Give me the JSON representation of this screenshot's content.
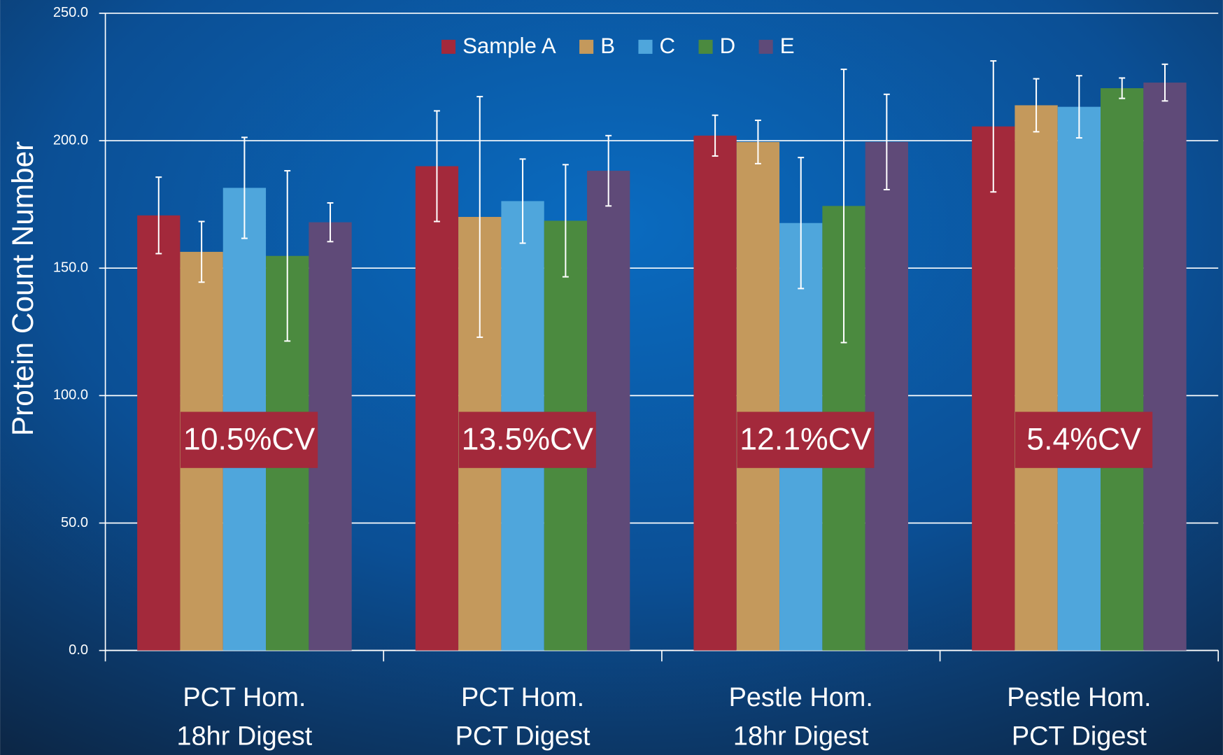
{
  "chart_data": {
    "type": "bar",
    "y_label": "Protein Count Number",
    "categories": [
      [
        "PCT Hom.",
        "18hr Digest"
      ],
      [
        "PCT Hom.",
        "PCT Digest"
      ],
      [
        "Pestle Hom.",
        "18hr Digest"
      ],
      [
        "Pestle Hom.",
        "PCT Digest"
      ]
    ],
    "series": [
      {
        "name": "Sample A",
        "color": "#a3293b",
        "values": [
          170.7,
          190.0,
          202.0,
          205.6
        ],
        "errors": [
          15.0,
          21.7,
          8.0,
          25.7
        ]
      },
      {
        "name": "B",
        "color": "#c4995c",
        "values": [
          156.4,
          170.1,
          199.5,
          213.9
        ],
        "errors": [
          11.9,
          47.2,
          8.5,
          10.4
        ]
      },
      {
        "name": "C",
        "color": "#4fa6dc",
        "values": [
          181.5,
          176.3,
          167.7,
          213.3
        ],
        "errors": [
          19.8,
          16.5,
          25.7,
          12.2
        ]
      },
      {
        "name": "D",
        "color": "#4b8a3f",
        "values": [
          154.8,
          168.6,
          174.4,
          220.6
        ],
        "errors": [
          33.4,
          22.0,
          53.6,
          4.0
        ]
      },
      {
        "name": "E",
        "color": "#5f4a78",
        "values": [
          168.0,
          188.2,
          199.5,
          222.8
        ],
        "errors": [
          7.6,
          13.8,
          18.7,
          7.2
        ]
      }
    ],
    "annotations": [
      "10.5%CV",
      "13.5%CV",
      "12.1%CV",
      "5.4%CV"
    ],
    "annotation_color": "#a3293b",
    "ylim": [
      0,
      250
    ],
    "yticks": [
      {
        "value": 0,
        "label": "0.0"
      },
      {
        "value": 50,
        "label": "50.0"
      },
      {
        "value": 100,
        "label": "100.0"
      },
      {
        "value": 150,
        "label": "150.0"
      },
      {
        "value": 200,
        "label": "200.0"
      },
      {
        "value": 250,
        "label": "250.0"
      }
    ],
    "grid": true,
    "legend": "top"
  }
}
